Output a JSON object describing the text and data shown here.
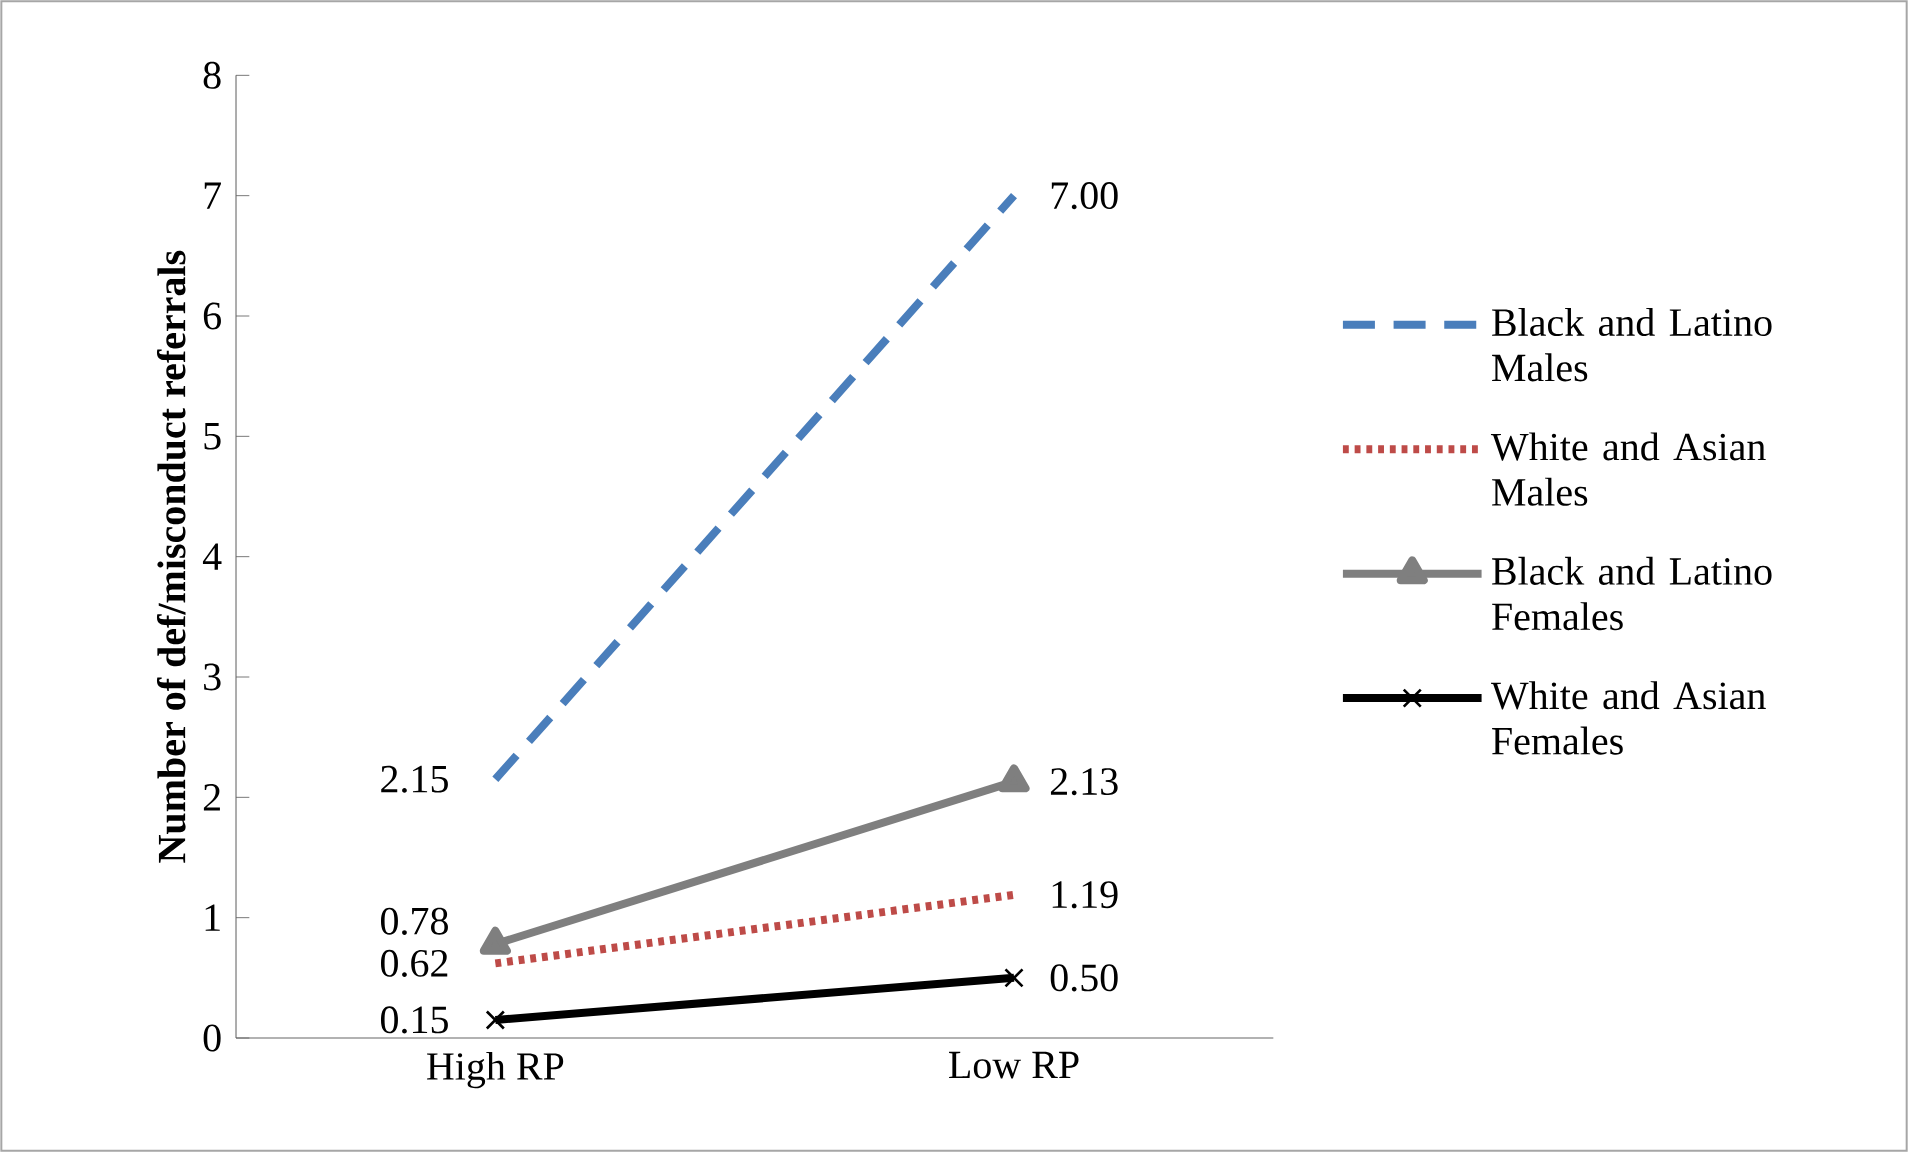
{
  "chart_data": {
    "type": "line",
    "ylabel": "Number of def/misconduct referrals",
    "categories": [
      "High RP",
      "Low  RP"
    ],
    "ylim": [
      0,
      8
    ],
    "yticks": [
      0,
      1,
      2,
      3,
      4,
      5,
      6,
      7,
      8
    ],
    "legend": "right",
    "grid": false,
    "series": [
      {
        "name": "Black and Latino Males",
        "color": "#4a7ebb",
        "values": [
          2.15,
          7.0
        ],
        "value_labels": [
          "2.15",
          "7.00"
        ],
        "line_style": "dashed",
        "marker": "none"
      },
      {
        "name": "White and Asian Males",
        "color": "#be4b48",
        "values": [
          0.62,
          1.19
        ],
        "value_labels": [
          "0.62",
          "1.19"
        ],
        "line_style": "dotted",
        "marker": "none"
      },
      {
        "name": "Black and Latino Females",
        "color": "#7f7f7f",
        "values": [
          0.78,
          2.13
        ],
        "value_labels": [
          "0.78",
          "2.13"
        ],
        "line_style": "solid",
        "marker": "triangle"
      },
      {
        "name": "White and Asian Females",
        "color": "#000000",
        "values": [
          0.15,
          0.5
        ],
        "value_labels": [
          "0.15",
          "0.50"
        ],
        "line_style": "solid",
        "marker": "cross"
      }
    ]
  }
}
